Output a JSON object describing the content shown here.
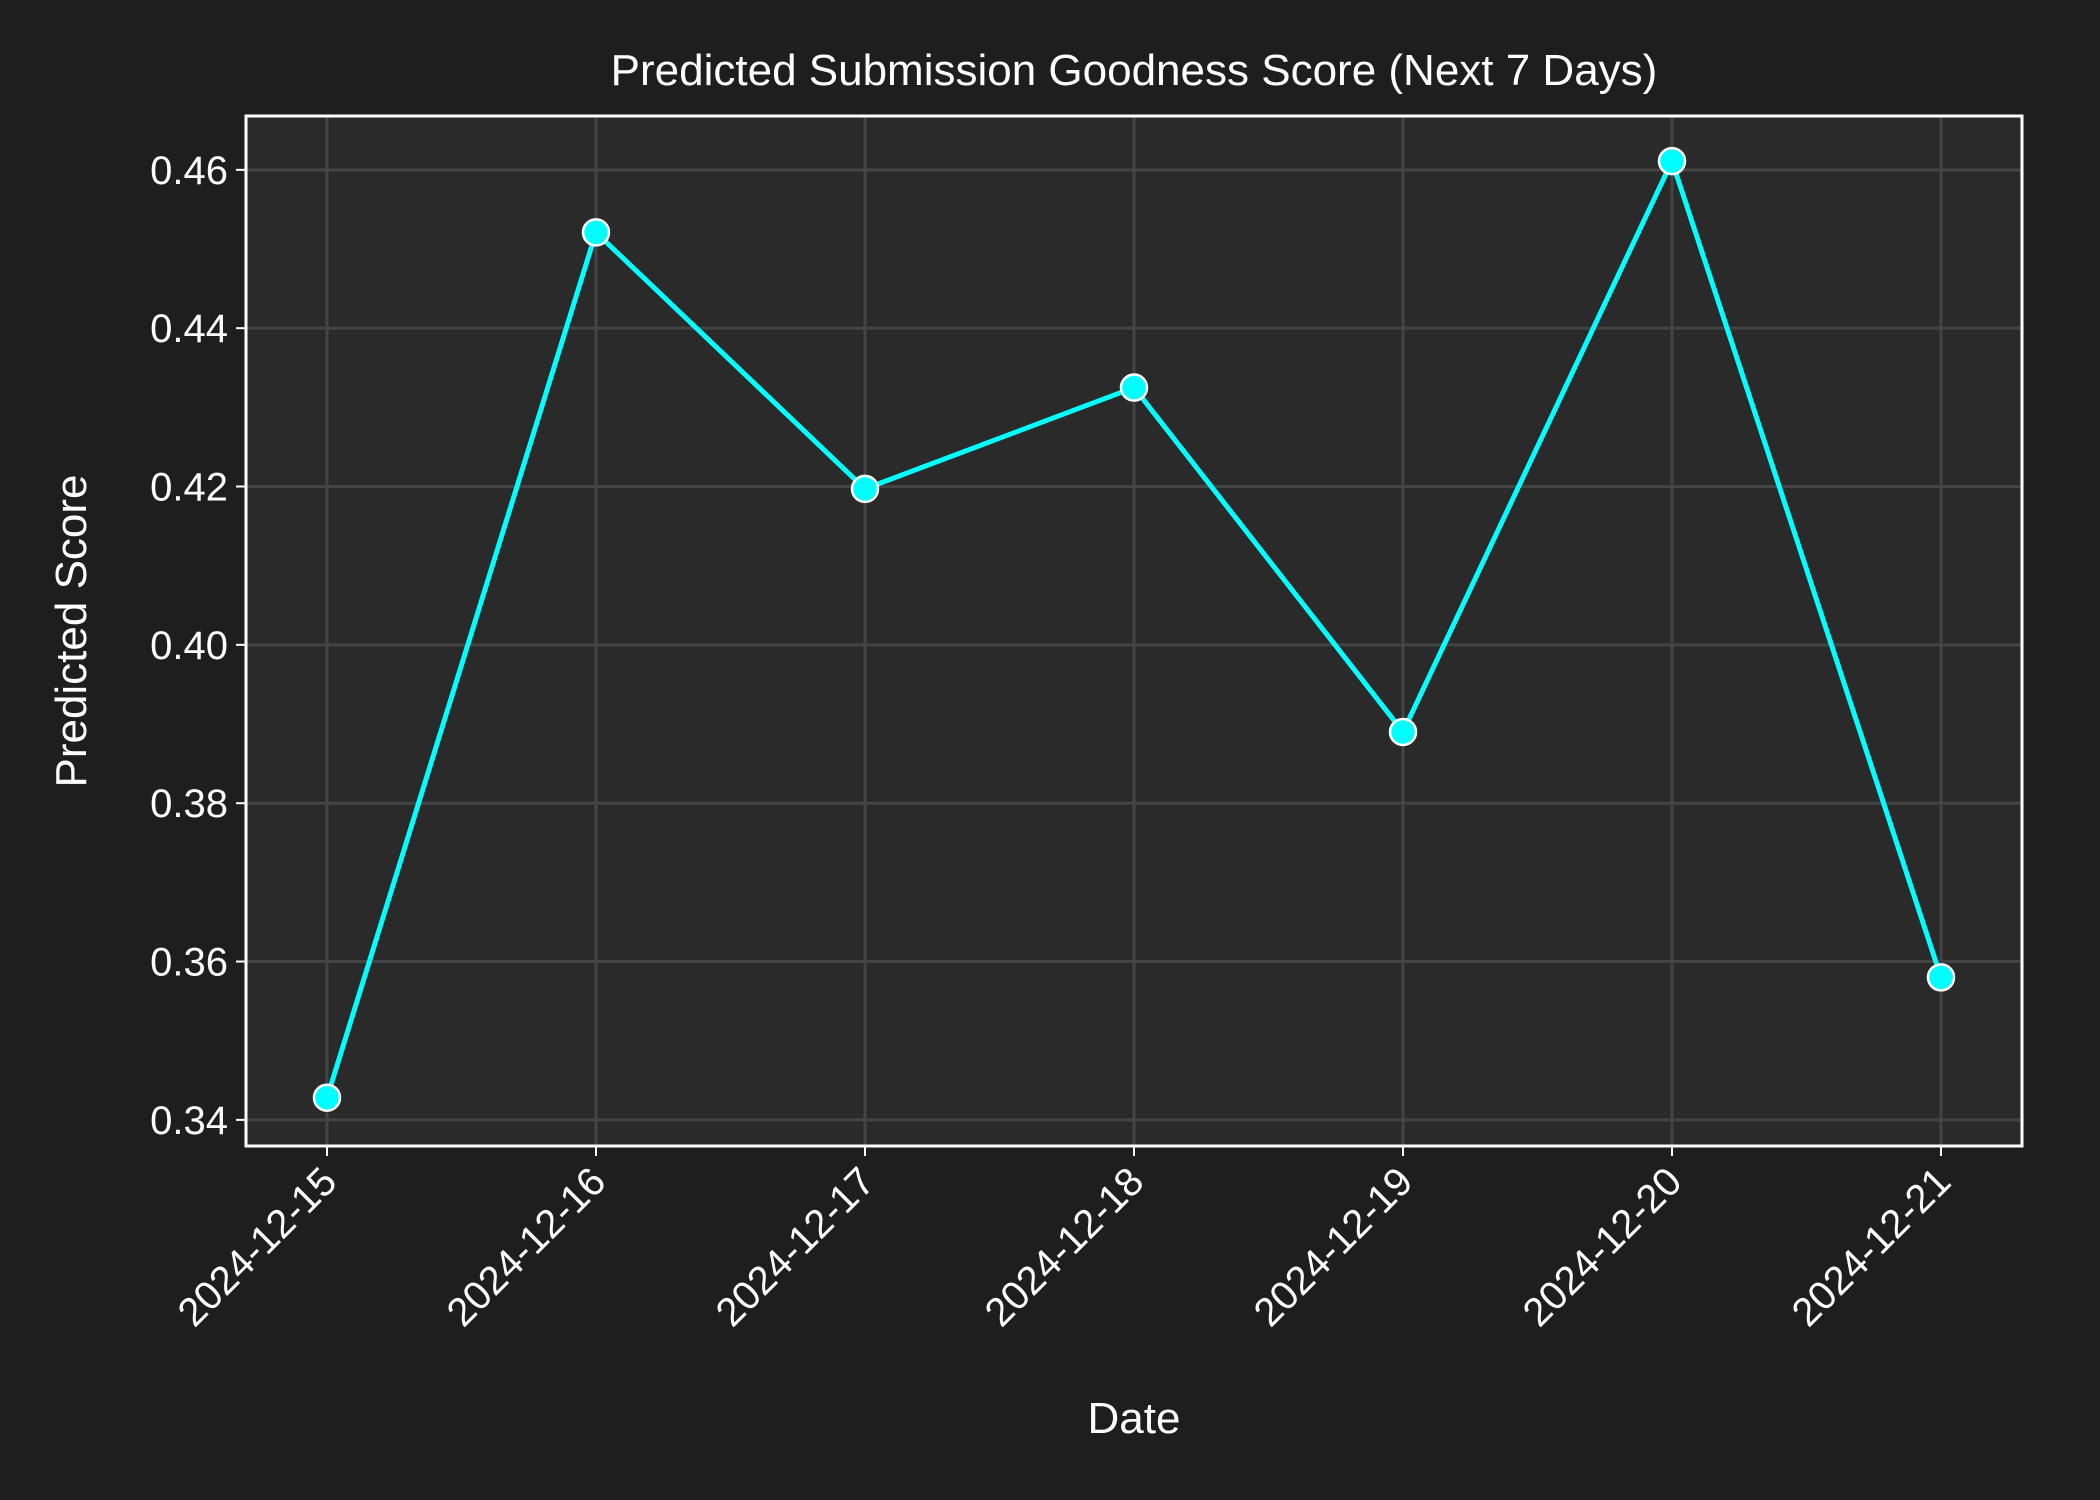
{
  "chart_data": {
    "type": "line",
    "title": "Predicted Submission Goodness Score (Next 7 Days)",
    "xlabel": "Date",
    "ylabel": "Predicted Score",
    "x": [
      "2024-12-15",
      "2024-12-16",
      "2024-12-17",
      "2024-12-18",
      "2024-12-19",
      "2024-12-20",
      "2024-12-21"
    ],
    "series": [
      {
        "values": [
          0.3428,
          0.4521,
          0.4197,
          0.4325,
          0.389,
          0.4611,
          0.358
        ]
      }
    ],
    "ylim": [
      0.3367,
      0.4668
    ],
    "yticks": [
      "0.34",
      "0.36",
      "0.38",
      "0.40",
      "0.42",
      "0.44",
      "0.46"
    ],
    "grid": true,
    "legend": "none"
  },
  "colors": {
    "figure_background": "#1e1e1e",
    "plot_background": "#2a2a2a",
    "grid": "#444444",
    "axes_frame": "#ffffff",
    "text": "#ffffff",
    "line": "#00ffff",
    "marker_fill": "#00ffff",
    "marker_edge": "#ffffff"
  }
}
